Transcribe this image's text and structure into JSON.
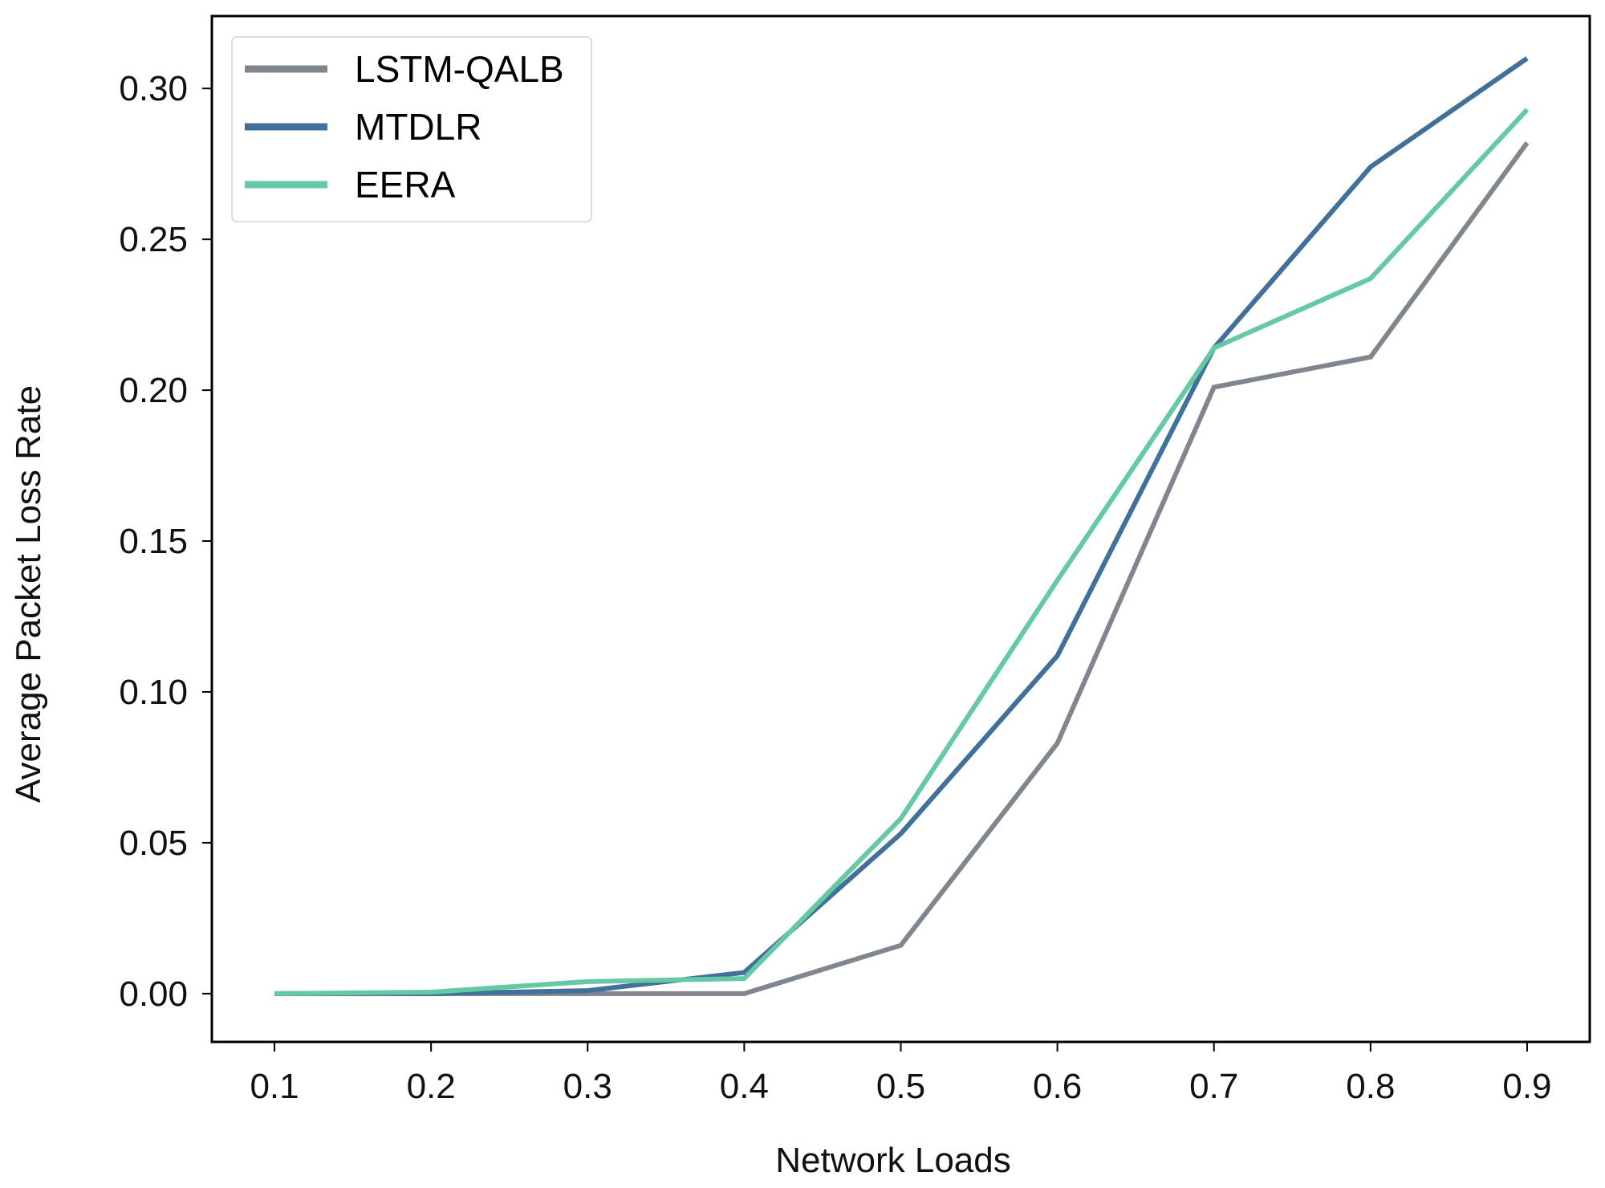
{
  "chart_data": {
    "type": "line",
    "title": "",
    "xlabel": "Network Loads",
    "ylabel": "Average Packet Loss Rate",
    "x": [
      0.1,
      0.2,
      0.3,
      0.4,
      0.5,
      0.6,
      0.7,
      0.8,
      0.9
    ],
    "xticks": [
      "0.1",
      "0.2",
      "0.3",
      "0.4",
      "0.5",
      "0.6",
      "0.7",
      "0.8",
      "0.9"
    ],
    "yticks": [
      "0.00",
      "0.05",
      "0.10",
      "0.15",
      "0.20",
      "0.25",
      "0.30"
    ],
    "xlim": [
      0.06,
      0.94
    ],
    "ylim": [
      -0.016,
      0.324
    ],
    "grid": false,
    "legend_position": "top-left",
    "series": [
      {
        "name": "LSTM-QALB",
        "color": "#80868e",
        "values": [
          0,
          0,
          0,
          0,
          0.016,
          0.083,
          0.201,
          0.211,
          0.282
        ]
      },
      {
        "name": "MTDLR",
        "color": "#41709a",
        "values": [
          0,
          0,
          0.001,
          0.007,
          0.053,
          0.112,
          0.214,
          0.274,
          0.31
        ]
      },
      {
        "name": "EERA",
        "color": "#66c9a6",
        "values": [
          0,
          0.0005,
          0.004,
          0.005,
          0.058,
          0.137,
          0.214,
          0.237,
          0.293
        ]
      }
    ]
  }
}
